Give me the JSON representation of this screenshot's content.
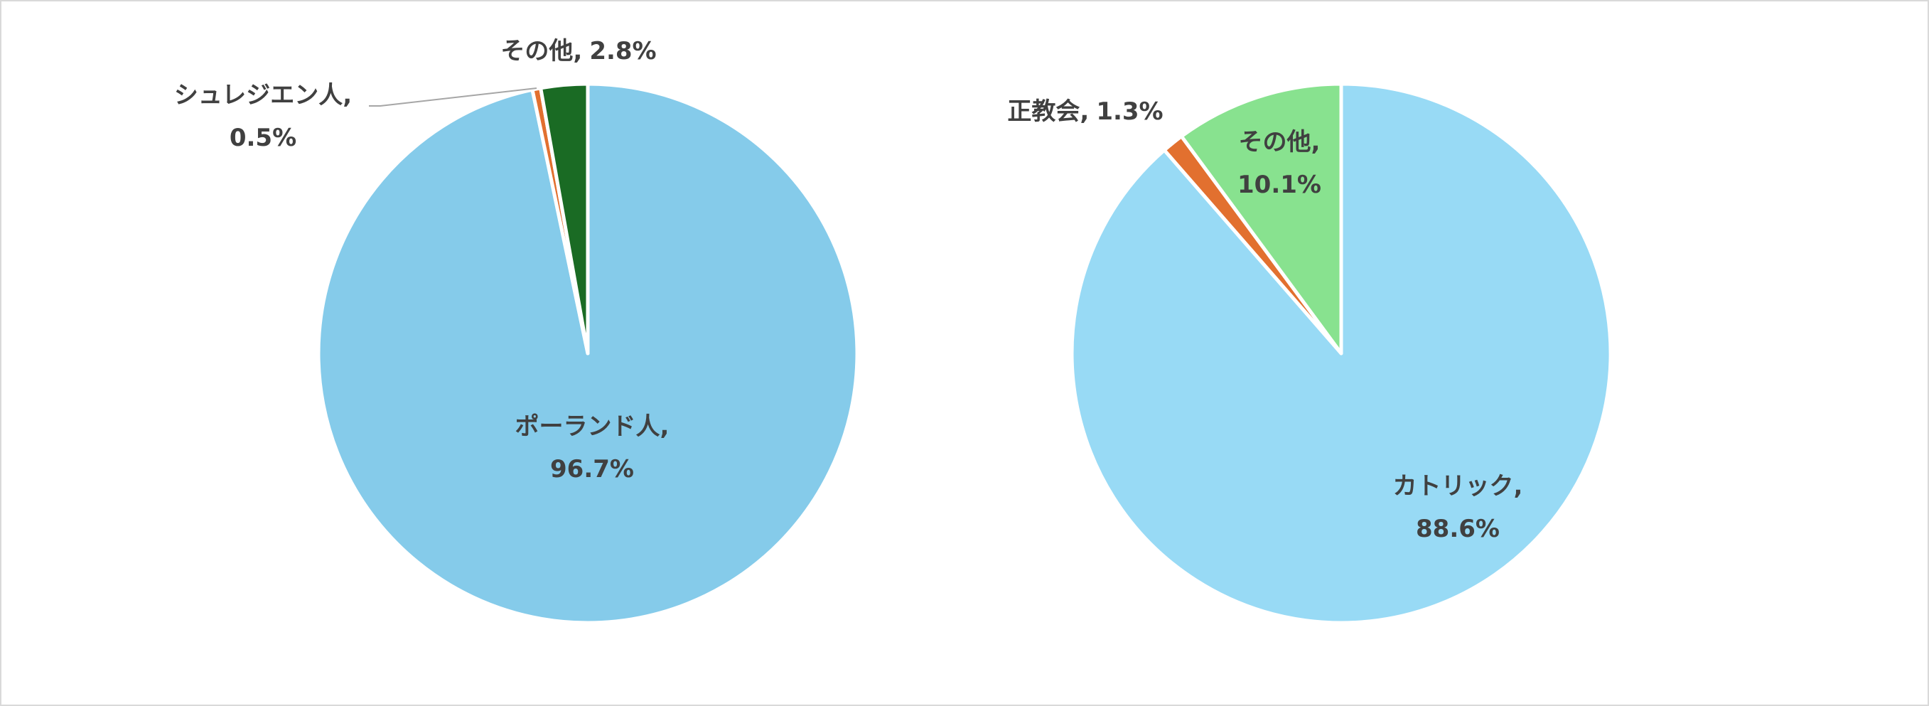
{
  "chart_data": [
    {
      "type": "pie",
      "categories": [
        "ポーランド人",
        "シュレジエン人",
        "その他"
      ],
      "values": [
        96.7,
        0.5,
        2.8
      ],
      "value_labels": [
        "96.7%",
        "0.5%",
        "2.8%"
      ],
      "colors": [
        "#85cbea",
        "#e2702f",
        "#1a6b24"
      ],
      "label_separator": ","
    },
    {
      "type": "pie",
      "categories": [
        "カトリック",
        "正教会",
        "その他"
      ],
      "values": [
        88.6,
        1.3,
        10.1
      ],
      "value_labels": [
        "88.6%",
        "1.3%",
        "10.1%"
      ],
      "colors": [
        "#98daf5",
        "#e2702f",
        "#88e28f"
      ],
      "label_separator": ","
    }
  ]
}
